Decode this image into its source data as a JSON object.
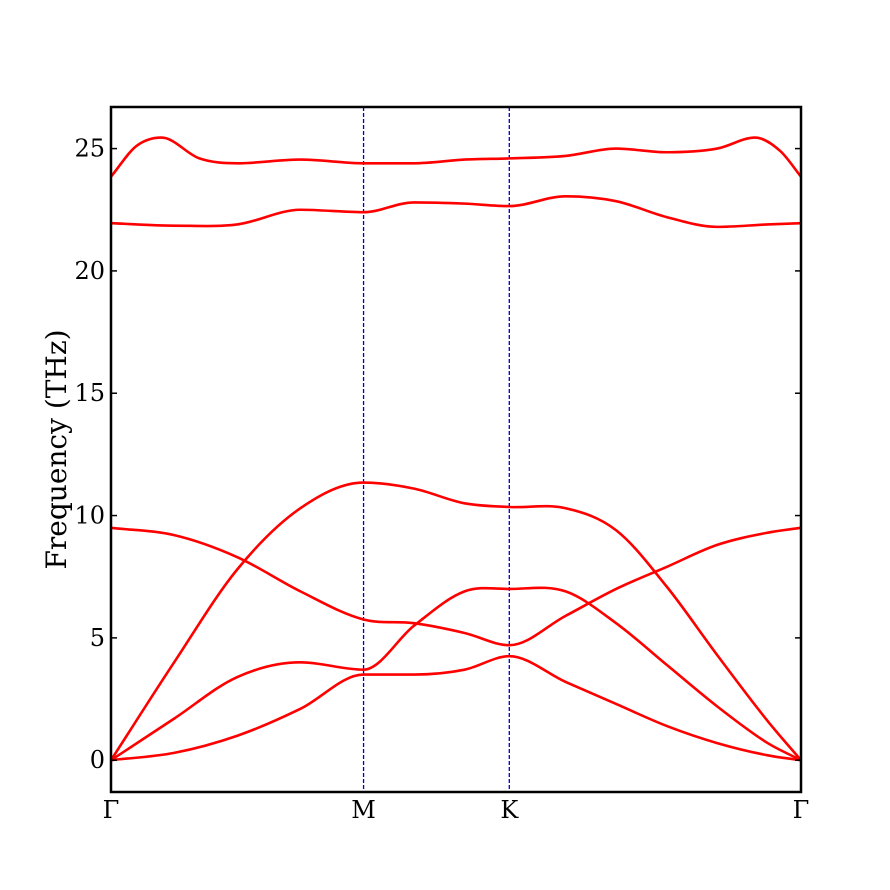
{
  "chart_data": {
    "type": "line",
    "title": "",
    "xlabel": "",
    "ylabel": "Frequency (THz)",
    "xlim": [
      0,
      2.732
    ],
    "ylim": [
      -1.3,
      26.7
    ],
    "grid": false,
    "legend": "none",
    "x_ticks": [
      {
        "x": 0,
        "label": "Γ"
      },
      {
        "x": 1.0,
        "label": "M"
      },
      {
        "x": 1.577,
        "label": "K"
      },
      {
        "x": 2.732,
        "label": "Γ"
      }
    ],
    "y_ticks": [
      0,
      5,
      10,
      15,
      20,
      25
    ],
    "high_symmetry_lines": [
      1.0,
      1.577
    ],
    "colors": {
      "bands": "#ff0000",
      "symmetry_lines": "#0000cc",
      "frame": "#000000"
    },
    "series": [
      {
        "x": [
          0,
          0.25,
          0.5,
          0.75,
          1.0,
          1.2,
          1.4,
          1.577,
          1.8,
          2.0,
          2.2,
          2.4,
          2.6,
          2.732
        ],
        "y": [
          0,
          0.3,
          1.0,
          2.1,
          3.5,
          3.5,
          3.7,
          4.25,
          3.2,
          2.3,
          1.4,
          0.7,
          0.2,
          0
        ]
      },
      {
        "x": [
          0,
          0.25,
          0.5,
          0.75,
          1.0,
          1.2,
          1.4,
          1.577,
          1.8,
          2.0,
          2.2,
          2.4,
          2.6,
          2.732
        ],
        "y": [
          0,
          1.7,
          3.4,
          4.0,
          3.7,
          5.5,
          6.9,
          7.0,
          6.9,
          5.6,
          3.9,
          2.2,
          0.7,
          0
        ]
      },
      {
        "x": [
          0,
          0.25,
          0.5,
          0.75,
          1.0,
          1.2,
          1.4,
          1.577,
          1.8,
          2.0,
          2.2,
          2.4,
          2.6,
          2.732
        ],
        "y": [
          9.5,
          9.2,
          8.3,
          6.9,
          5.75,
          5.6,
          5.2,
          4.7,
          5.9,
          7.0,
          7.9,
          8.8,
          9.3,
          9.5
        ]
      },
      {
        "x": [
          0,
          0.25,
          0.5,
          0.75,
          1.0,
          1.2,
          1.4,
          1.577,
          1.8,
          2.0,
          2.2,
          2.4,
          2.6,
          2.732
        ],
        "y": [
          0,
          4.0,
          7.8,
          10.3,
          11.35,
          11.1,
          10.5,
          10.35,
          10.3,
          9.4,
          7.1,
          4.3,
          1.6,
          0
        ]
      },
      {
        "x": [
          0,
          0.25,
          0.5,
          0.75,
          1.0,
          1.2,
          1.4,
          1.577,
          1.8,
          2.0,
          2.2,
          2.4,
          2.6,
          2.732
        ],
        "y": [
          21.95,
          21.85,
          21.9,
          22.5,
          22.4,
          22.8,
          22.75,
          22.65,
          23.05,
          22.85,
          22.2,
          21.8,
          21.9,
          21.95
        ]
      },
      {
        "x": [
          0,
          0.1,
          0.2,
          0.35,
          0.5,
          0.75,
          1.0,
          1.2,
          1.4,
          1.577,
          1.8,
          2.0,
          2.2,
          2.4,
          2.55,
          2.65,
          2.732
        ],
        "y": [
          23.85,
          25.1,
          25.45,
          24.6,
          24.4,
          24.55,
          24.4,
          24.4,
          24.55,
          24.6,
          24.7,
          25.0,
          24.85,
          25.0,
          25.45,
          24.9,
          23.85
        ]
      }
    ]
  }
}
